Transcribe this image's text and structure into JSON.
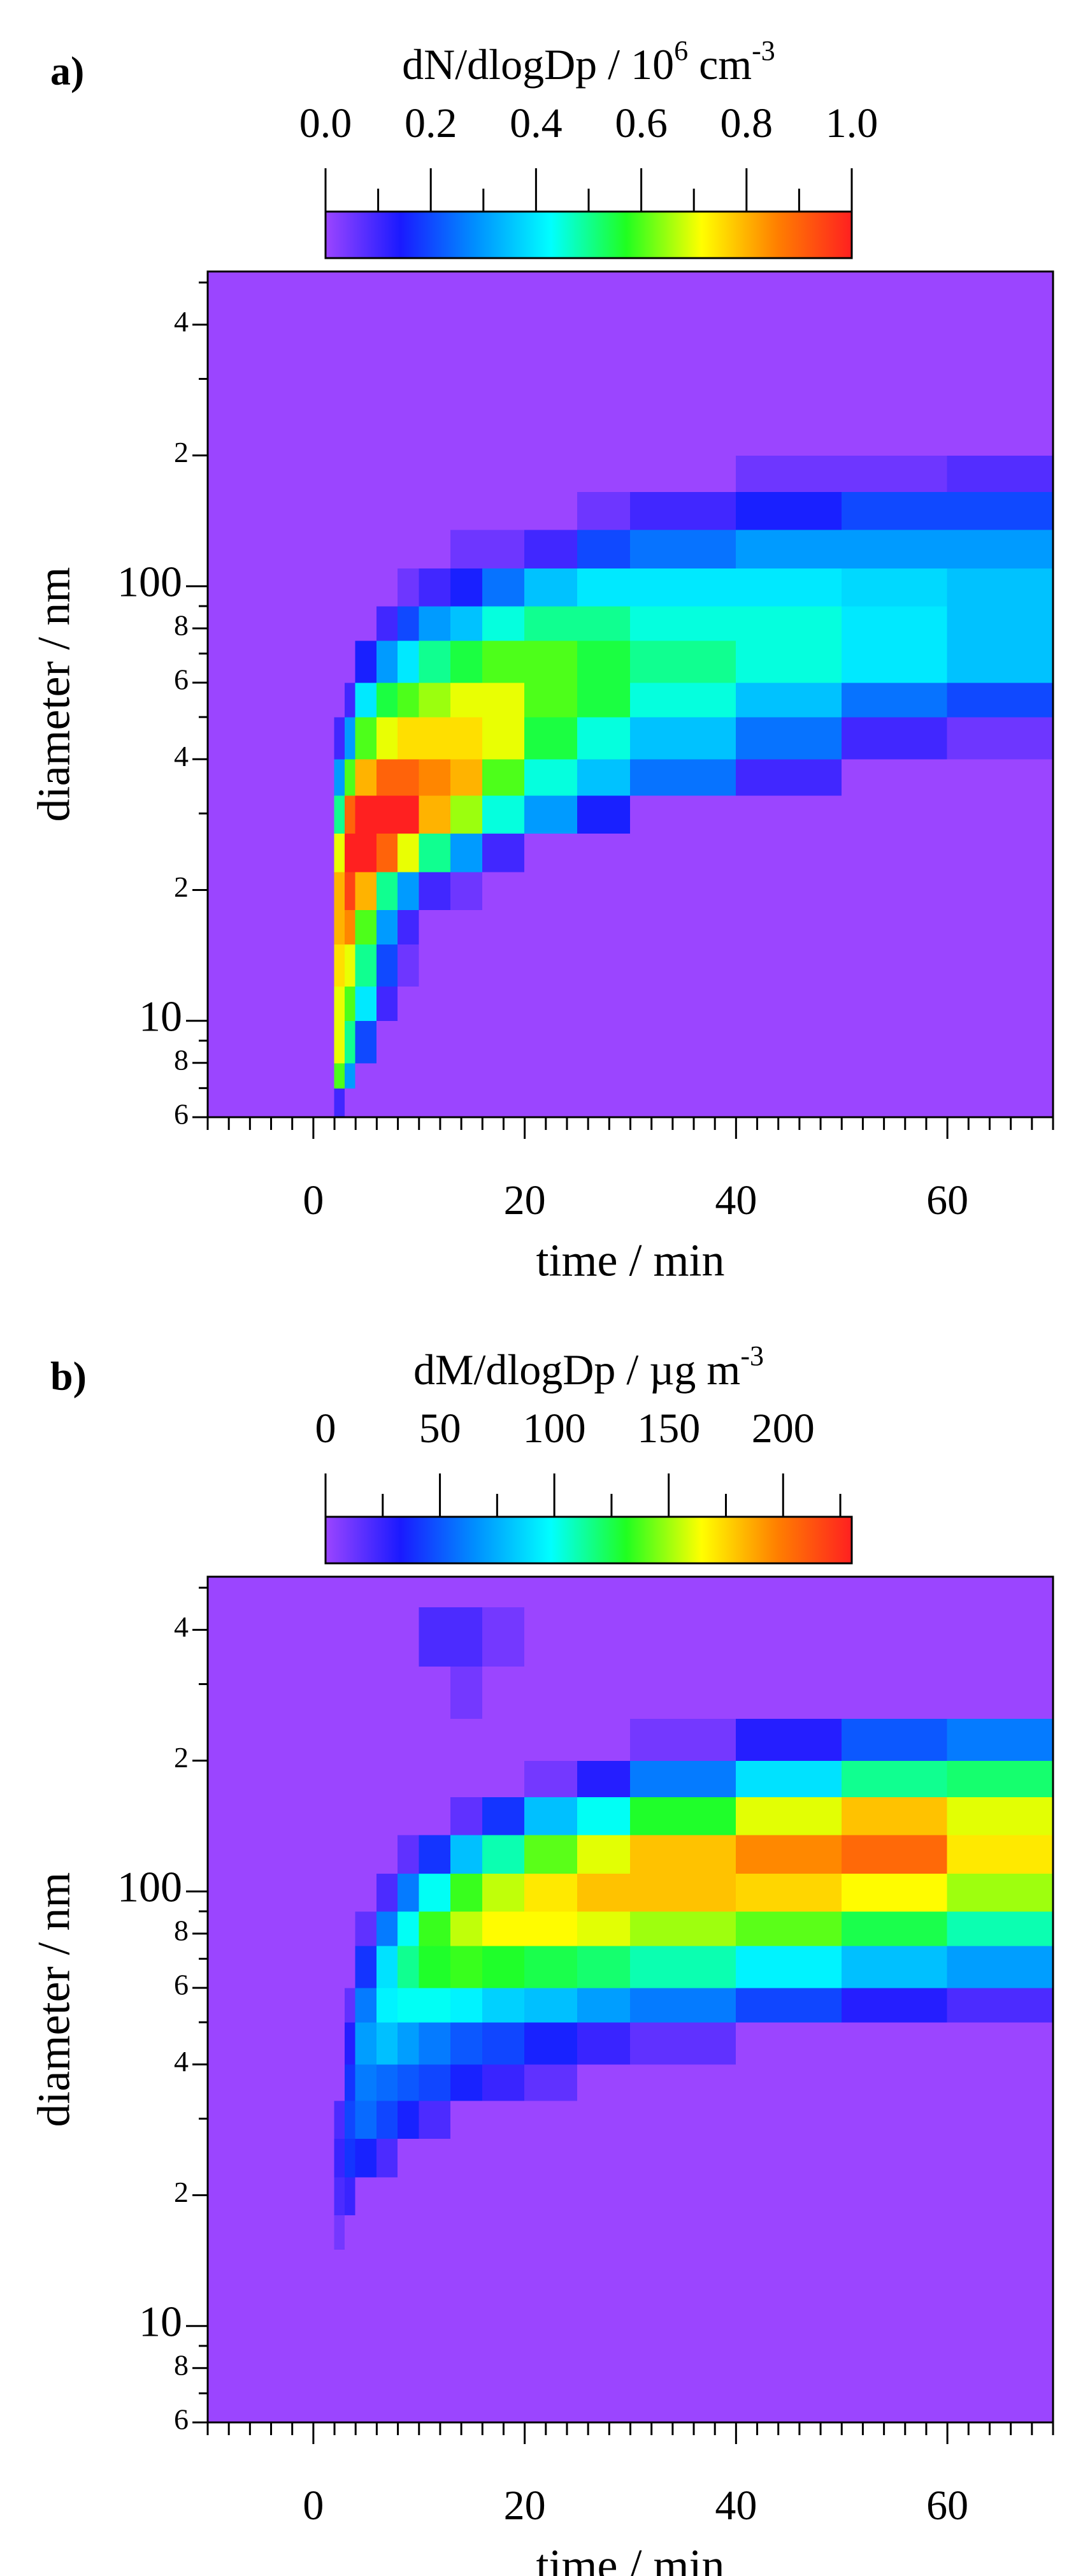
{
  "chart_data": [
    {
      "type": "heatmap",
      "panel_label": "a)",
      "zlabel": [
        "dN/dlogDp / 10",
        "6",
        " cm",
        "-3"
      ],
      "xlabel": "time / min",
      "ylabel": "diameter / nm",
      "xlim": [
        -10,
        70
      ],
      "xticks": [
        0,
        20,
        40,
        60
      ],
      "xminorticks": [
        -10,
        -8,
        -6,
        -4,
        -2,
        2,
        4,
        6,
        8,
        10,
        12,
        14,
        16,
        18,
        22,
        24,
        26,
        28,
        30,
        32,
        34,
        36,
        38,
        42,
        44,
        46,
        48,
        50,
        52,
        54,
        56,
        58,
        62,
        64,
        66,
        68,
        70
      ],
      "ylim": [
        6,
        530
      ],
      "ylog": true,
      "yticks": [
        {
          "value": 400,
          "label": "4"
        },
        {
          "value": 200,
          "label": "2"
        },
        100,
        {
          "value": 80,
          "label": "8"
        },
        {
          "value": 60,
          "label": "6"
        },
        {
          "value": 40,
          "label": "4"
        },
        {
          "value": 20,
          "label": "2"
        },
        10,
        {
          "value": 8,
          "label": "8"
        },
        {
          "value": 6,
          "label": "6"
        }
      ],
      "yminorticks": [
        7,
        9,
        30,
        50,
        70,
        90,
        300,
        500
      ],
      "zlim": [
        0,
        1
      ],
      "zticks": [
        {
          "value": 0,
          "label": "0.0"
        },
        0.2,
        0.4,
        0.6,
        0.8,
        {
          "value": 1,
          "label": "1.0"
        }
      ],
      "zminorticks": [
        0.1,
        0.3,
        0.5,
        0.7,
        0.9
      ],
      "colormap": [
        "#9b45ff",
        "#1a1aff",
        "#0090ff",
        "#00ffff",
        "#20ff20",
        "#ffff00",
        "#ff8000",
        "#ff2020"
      ],
      "x_edges": [
        2,
        3,
        4,
        6,
        8,
        10,
        13,
        16,
        20,
        25,
        30,
        40,
        50,
        60,
        70
      ],
      "y_edges": [
        6,
        7,
        8,
        10,
        12,
        15,
        18,
        22,
        27,
        33,
        40,
        50,
        60,
        75,
        90,
        110,
        135,
        165,
        200,
        250,
        330,
        450
      ],
      "z": [
        [
          0.1,
          0.6,
          0.7,
          0.7,
          0.75,
          0.8,
          0.8,
          0.7,
          0.5,
          0.3,
          0.1,
          0,
          0,
          0,
          0,
          0,
          0,
          0,
          0,
          0,
          0
        ],
        [
          0,
          0.3,
          0.5,
          0.6,
          0.7,
          0.85,
          0.95,
          1,
          0.9,
          0.6,
          0.3,
          0.1,
          0,
          0,
          0,
          0,
          0,
          0,
          0,
          0,
          0
        ],
        [
          0,
          0,
          0.2,
          0.4,
          0.5,
          0.6,
          0.8,
          1,
          1,
          0.8,
          0.6,
          0.4,
          0.15,
          0,
          0,
          0,
          0,
          0,
          0,
          0,
          0
        ],
        [
          0,
          0,
          0,
          0.1,
          0.2,
          0.3,
          0.5,
          0.9,
          1,
          0.9,
          0.7,
          0.55,
          0.3,
          0.1,
          0,
          0,
          0,
          0,
          0,
          0,
          0
        ],
        [
          0,
          0,
          0,
          0,
          0.05,
          0.1,
          0.3,
          0.7,
          1,
          0.9,
          0.75,
          0.6,
          0.4,
          0.2,
          0.05,
          0,
          0,
          0,
          0,
          0,
          0
        ],
        [
          0,
          0,
          0,
          0,
          0,
          0,
          0.1,
          0.5,
          0.8,
          0.85,
          0.75,
          0.65,
          0.5,
          0.3,
          0.1,
          0,
          0,
          0,
          0,
          0,
          0
        ],
        [
          0,
          0,
          0,
          0,
          0,
          0,
          0.05,
          0.3,
          0.65,
          0.8,
          0.75,
          0.7,
          0.55,
          0.35,
          0.15,
          0.05,
          0,
          0,
          0,
          0,
          0
        ],
        [
          0,
          0,
          0,
          0,
          0,
          0,
          0,
          0.1,
          0.45,
          0.6,
          0.7,
          0.7,
          0.6,
          0.45,
          0.25,
          0.05,
          0,
          0,
          0,
          0,
          0
        ],
        [
          0,
          0,
          0,
          0,
          0,
          0,
          0,
          0,
          0.3,
          0.45,
          0.55,
          0.6,
          0.6,
          0.5,
          0.35,
          0.1,
          0,
          0,
          0,
          0,
          0
        ],
        [
          0,
          0,
          0,
          0,
          0,
          0,
          0,
          0,
          0.15,
          0.35,
          0.45,
          0.55,
          0.55,
          0.5,
          0.4,
          0.2,
          0.05,
          0,
          0,
          0,
          0
        ],
        [
          0,
          0,
          0,
          0,
          0,
          0,
          0,
          0,
          0,
          0.25,
          0.35,
          0.45,
          0.5,
          0.45,
          0.4,
          0.25,
          0.1,
          0,
          0,
          0,
          0
        ],
        [
          0,
          0,
          0,
          0,
          0,
          0,
          0,
          0,
          0,
          0.1,
          0.25,
          0.35,
          0.45,
          0.45,
          0.4,
          0.3,
          0.15,
          0.05,
          0,
          0,
          0
        ],
        [
          0,
          0,
          0,
          0,
          0,
          0,
          0,
          0,
          0,
          0,
          0.1,
          0.25,
          0.4,
          0.4,
          0.38,
          0.3,
          0.2,
          0.05,
          0,
          0,
          0
        ],
        [
          0,
          0,
          0,
          0,
          0,
          0,
          0,
          0,
          0,
          0,
          0.05,
          0.2,
          0.35,
          0.35,
          0.35,
          0.3,
          0.2,
          0.08,
          0,
          0,
          0
        ]
      ]
    },
    {
      "type": "heatmap",
      "panel_label": "b)",
      "zlabel": [
        "dM/dlogDp / µg m",
        "-3"
      ],
      "xlabel": "time / min",
      "ylabel": "diameter / nm",
      "xlim": [
        -10,
        70
      ],
      "xticks": [
        0,
        20,
        40,
        60
      ],
      "xminorticks": [
        -10,
        -8,
        -6,
        -4,
        -2,
        2,
        4,
        6,
        8,
        10,
        12,
        14,
        16,
        18,
        22,
        24,
        26,
        28,
        30,
        32,
        34,
        36,
        38,
        42,
        44,
        46,
        48,
        50,
        52,
        54,
        56,
        58,
        62,
        64,
        66,
        68,
        70
      ],
      "ylim": [
        6,
        530
      ],
      "ylog": true,
      "yticks": [
        {
          "value": 400,
          "label": "4"
        },
        {
          "value": 200,
          "label": "2"
        },
        100,
        {
          "value": 80,
          "label": "8"
        },
        {
          "value": 60,
          "label": "6"
        },
        {
          "value": 40,
          "label": "4"
        },
        {
          "value": 20,
          "label": "2"
        },
        10,
        {
          "value": 8,
          "label": "8"
        },
        {
          "value": 6,
          "label": "6"
        }
      ],
      "yminorticks": [
        7,
        9,
        30,
        50,
        70,
        90,
        300,
        500
      ],
      "zlim": [
        0,
        230
      ],
      "zticks": [
        0,
        50,
        100,
        150,
        200
      ],
      "zminorticks": [
        25,
        75,
        125,
        175,
        225
      ],
      "colormap": [
        "#9b45ff",
        "#1a1aff",
        "#0090ff",
        "#00ffff",
        "#20ff20",
        "#ffff00",
        "#ff8000",
        "#ff2020"
      ],
      "x_edges": [
        2,
        3,
        4,
        6,
        8,
        10,
        13,
        16,
        20,
        25,
        30,
        40,
        50,
        60,
        70
      ],
      "y_edges": [
        6,
        7,
        8,
        10,
        12,
        15,
        18,
        22,
        27,
        33,
        40,
        50,
        60,
        75,
        90,
        110,
        135,
        165,
        200,
        250,
        330,
        450
      ],
      "z": [
        [
          0,
          0,
          0,
          0,
          0,
          10,
          20,
          25,
          20,
          0,
          0,
          0,
          0,
          0,
          0,
          0,
          0,
          0,
          0,
          0,
          0
        ],
        [
          0,
          0,
          0,
          0,
          0,
          0,
          25,
          40,
          45,
          40,
          30,
          15,
          0,
          0,
          0,
          0,
          0,
          0,
          0,
          0,
          0
        ],
        [
          0,
          0,
          0,
          0,
          0,
          0,
          0,
          35,
          55,
          60,
          70,
          60,
          40,
          15,
          0,
          0,
          0,
          0,
          0,
          0,
          0
        ],
        [
          0,
          0,
          0,
          0,
          0,
          0,
          0,
          20,
          45,
          55,
          80,
          95,
          90,
          60,
          20,
          0,
          0,
          0,
          0,
          0,
          0
        ],
        [
          0,
          0,
          0,
          0,
          0,
          0,
          0,
          0,
          35,
          50,
          70,
          100,
          115,
          100,
          60,
          15,
          0,
          0,
          0,
          0,
          0
        ],
        [
          0,
          0,
          0,
          0,
          0,
          0,
          0,
          0,
          20,
          45,
          60,
          100,
          130,
          135,
          100,
          40,
          0,
          0,
          0,
          0,
          20
        ],
        [
          0,
          0,
          0,
          0,
          0,
          0,
          0,
          0,
          0,
          35,
          50,
          95,
          135,
          155,
          135,
          80,
          15,
          0,
          0,
          10,
          20
        ],
        [
          0,
          0,
          0,
          0,
          0,
          0,
          0,
          0,
          0,
          25,
          45,
          85,
          130,
          165,
          155,
          110,
          40,
          0,
          0,
          0,
          10
        ],
        [
          0,
          0,
          0,
          0,
          0,
          0,
          0,
          0,
          0,
          15,
          35,
          80,
          125,
          165,
          170,
          140,
          80,
          10,
          0,
          0,
          0
        ],
        [
          0,
          0,
          0,
          0,
          0,
          0,
          0,
          0,
          0,
          0,
          25,
          70,
          120,
          160,
          180,
          160,
          100,
          30,
          0,
          0,
          0
        ],
        [
          0,
          0,
          0,
          0,
          0,
          0,
          0,
          0,
          0,
          0,
          15,
          60,
          110,
          150,
          180,
          180,
          130,
          60,
          10,
          0,
          0
        ],
        [
          0,
          0,
          0,
          0,
          0,
          0,
          0,
          0,
          0,
          0,
          0,
          45,
          95,
          140,
          175,
          195,
          160,
          90,
          30,
          0,
          0
        ],
        [
          0,
          0,
          0,
          0,
          0,
          0,
          0,
          0,
          0,
          0,
          0,
          30,
          80,
          125,
          165,
          205,
          180,
          115,
          50,
          0,
          0
        ],
        [
          0,
          0,
          0,
          0,
          0,
          0,
          0,
          0,
          0,
          0,
          0,
          20,
          70,
          110,
          150,
          170,
          160,
          120,
          60,
          0,
          0
        ]
      ]
    }
  ]
}
